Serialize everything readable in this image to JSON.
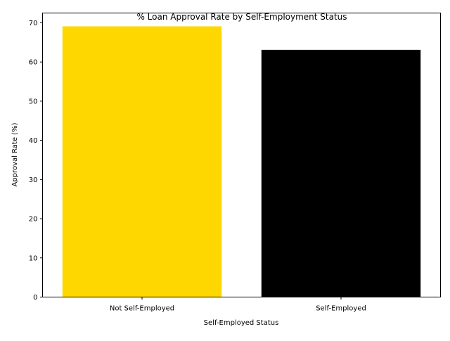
{
  "chart_data": {
    "type": "bar",
    "title": "% Loan Approval Rate by Self-Employment Status",
    "xlabel": "Self-Employed Status",
    "ylabel": "Approval Rate (%)",
    "categories": [
      "Not Self-Employed",
      "Self-Employed"
    ],
    "values": [
      69.1,
      63.1
    ],
    "colors": [
      "#FFD700",
      "#000000"
    ],
    "ylim": [
      0,
      72.5
    ],
    "yticks": [
      0,
      10,
      20,
      30,
      40,
      50,
      60,
      70
    ],
    "grid": false,
    "legend": "none"
  }
}
